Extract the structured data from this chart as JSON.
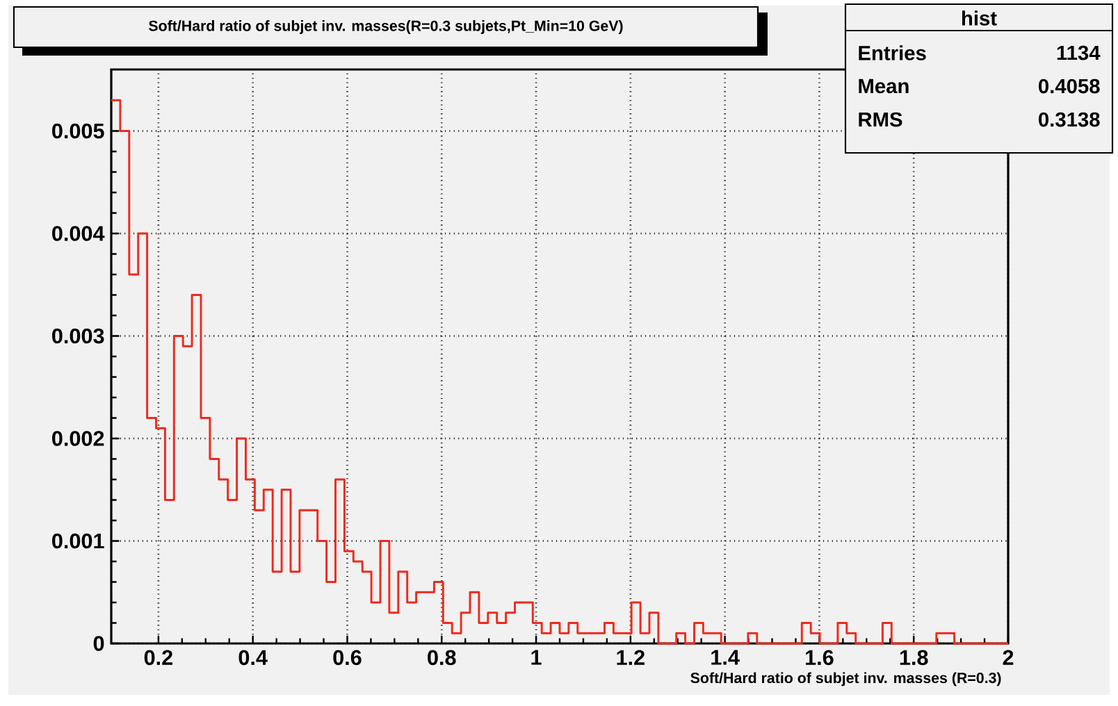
{
  "chart_data": {
    "type": "histogram",
    "title": "Soft/Hard ratio of subjet inv. masses(R=0.3 subjets,Pt_Min=10 GeV)",
    "xlabel": "Soft/Hard ratio of subjet inv. masses (R=0.3)",
    "bins": [
      0.1,
      0.119,
      0.138,
      0.157,
      0.176,
      0.195,
      0.214,
      0.233,
      0.252,
      0.271,
      0.29,
      0.309,
      0.328,
      0.347,
      0.366,
      0.385,
      0.404,
      0.423,
      0.442,
      0.461,
      0.48,
      0.499,
      0.518,
      0.537,
      0.556,
      0.575,
      0.594,
      0.613,
      0.632,
      0.651,
      0.67,
      0.689,
      0.708,
      0.727,
      0.746,
      0.765,
      0.784,
      0.803,
      0.822,
      0.841,
      0.86,
      0.879,
      0.898,
      0.917,
      0.936,
      0.955,
      0.974,
      0.993,
      1.012,
      1.031,
      1.05,
      1.069,
      1.088,
      1.107,
      1.126,
      1.145,
      1.164,
      1.183,
      1.202,
      1.221,
      1.24,
      1.259,
      1.278,
      1.297,
      1.316,
      1.335,
      1.354,
      1.373,
      1.392,
      1.411,
      1.43,
      1.449,
      1.468,
      1.487,
      1.506,
      1.525,
      1.544,
      1.563,
      1.582,
      1.601,
      1.62,
      1.639,
      1.658,
      1.677,
      1.696,
      1.715,
      1.734,
      1.753,
      1.772,
      1.791,
      1.81,
      1.829,
      1.848,
      1.867,
      1.886,
      1.905,
      1.924,
      1.943,
      1.962,
      1.981,
      2.0
    ],
    "values": [
      0.0053,
      0.005,
      0.0036,
      0.004,
      0.0022,
      0.0021,
      0.0014,
      0.003,
      0.0029,
      0.0034,
      0.0022,
      0.0018,
      0.0016,
      0.0014,
      0.002,
      0.0016,
      0.0013,
      0.0015,
      0.0007,
      0.0015,
      0.0007,
      0.0013,
      0.0013,
      0.001,
      0.0006,
      0.0016,
      0.0009,
      0.0008,
      0.0007,
      0.0004,
      0.001,
      0.0003,
      0.0007,
      0.0004,
      0.0005,
      0.0005,
      0.0006,
      0.0002,
      0.0001,
      0.0003,
      0.0005,
      0.0002,
      0.0003,
      0.0002,
      0.0003,
      0.0004,
      0.0004,
      0.0002,
      0.0001,
      0.0002,
      0.0001,
      0.0002,
      0.0001,
      0.0001,
      0.0001,
      0.0002,
      0.0001,
      0.0001,
      0.0004,
      0.0001,
      0.0003,
      0,
      0,
      0.0001,
      0,
      0.0002,
      0.0001,
      0.0001,
      0,
      0,
      0,
      0.0001,
      0,
      0,
      0,
      0,
      0,
      0.0002,
      0.0001,
      0,
      0,
      0.0002,
      0.0001,
      0,
      0,
      0,
      0.0002,
      0,
      0,
      0,
      0,
      0,
      0.0001,
      0.0001,
      0,
      0,
      0,
      0,
      0,
      0
    ],
    "color": "#ee2a1c",
    "xlim": [
      0.1,
      2
    ],
    "ylim": [
      0,
      0.0056
    ],
    "xticks": [
      0.2,
      0.4,
      0.6,
      0.8,
      1,
      1.2,
      1.4,
      1.6,
      1.8,
      2
    ],
    "yticks": [
      0,
      0.001,
      0.002,
      0.003,
      0.004,
      0.005
    ],
    "grid": true,
    "annotations": [
      "hist",
      "Entries",
      "1134",
      "Mean",
      "0.4058",
      "RMS",
      "0.3138"
    ]
  }
}
